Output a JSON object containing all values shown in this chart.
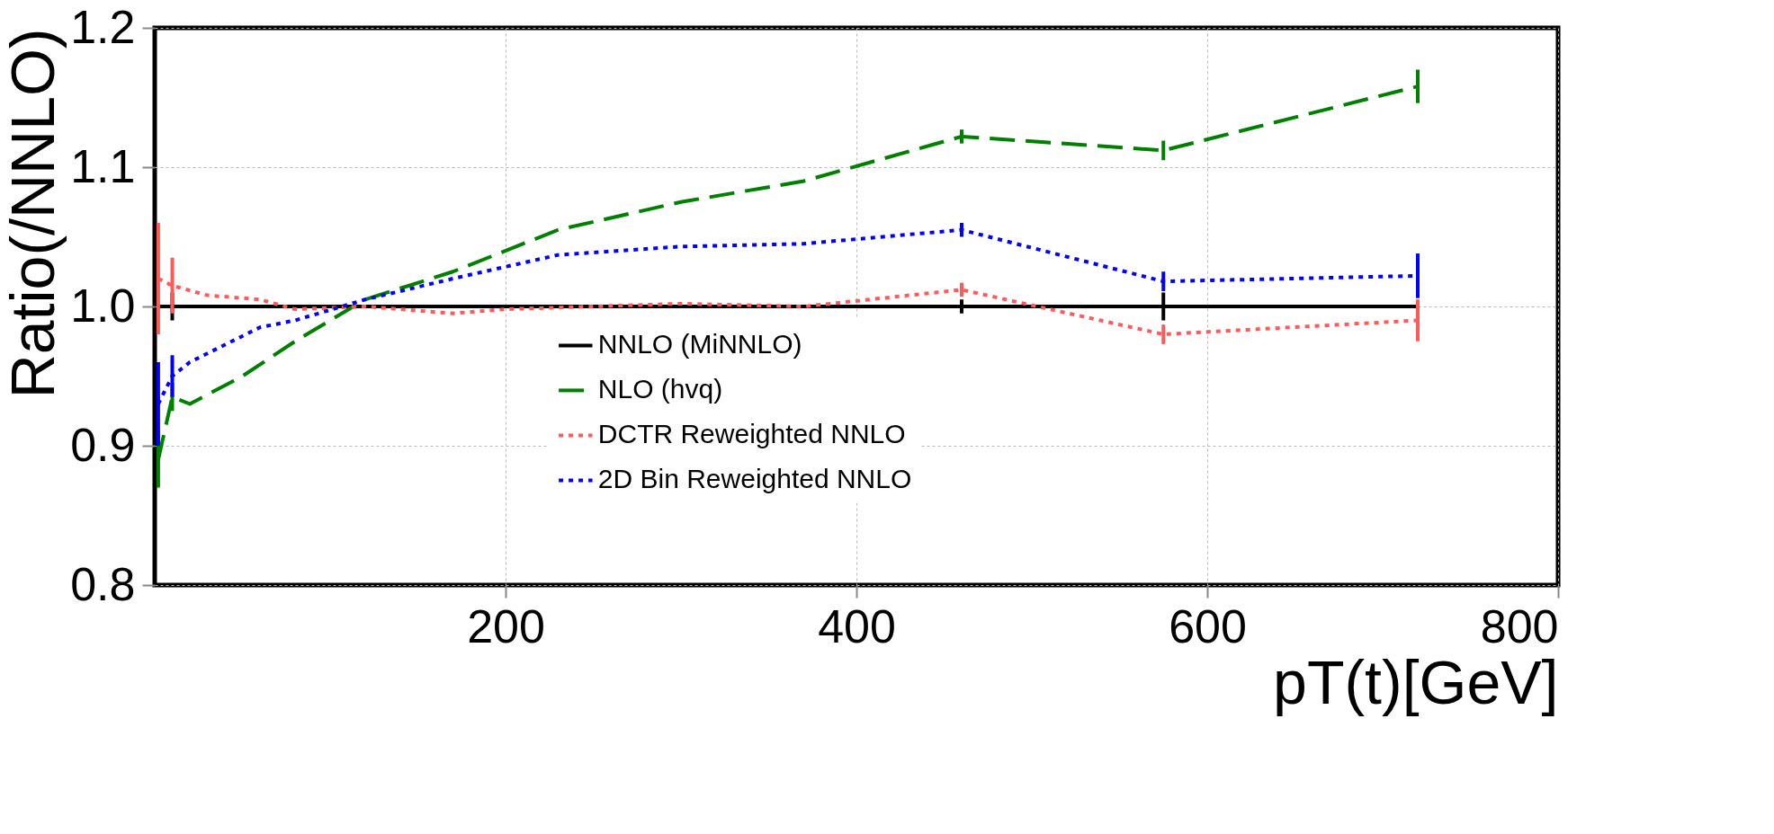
{
  "chart_data": {
    "type": "line",
    "xlabel": "pT(t)[GeV]",
    "ylabel": "Ratio(/NNLO)",
    "xlim": [
      0,
      800
    ],
    "ylim": [
      0.8,
      1.2
    ],
    "xticks": [
      200,
      400,
      600,
      800
    ],
    "yticks": [
      0.8,
      0.9,
      {
        "value": 1.0,
        "label": "1.0"
      },
      1.1,
      1.2
    ],
    "grid": true,
    "legend": "bottom",
    "series": [
      {
        "name": "NNLO (MiNNLO)",
        "color": "#000000",
        "line_style": "solid",
        "x": [
          2,
          10,
          30,
          80,
          150,
          300,
          460,
          575,
          720
        ],
        "values": [
          1.0,
          1.0,
          1.0,
          1.0,
          1.0,
          1.0,
          1.0,
          1.0,
          1.0
        ],
        "errors": [
          null,
          0.01,
          null,
          null,
          null,
          null,
          0.005,
          0.01,
          null
        ]
      },
      {
        "name": "NLO (hvq)",
        "color": "#008000",
        "line_style": "dashed",
        "x": [
          2,
          10,
          20,
          50,
          80,
          120,
          170,
          230,
          300,
          370,
          460,
          575,
          720
        ],
        "values": [
          0.89,
          0.935,
          0.93,
          0.95,
          0.975,
          1.005,
          1.025,
          1.055,
          1.075,
          1.09,
          1.122,
          1.112,
          1.158
        ],
        "errors": [
          0.02,
          0.01,
          null,
          null,
          null,
          null,
          null,
          null,
          null,
          null,
          0.005,
          0.007,
          0.012
        ]
      },
      {
        "name": "DCTR Reweighted NNLO",
        "color": "#ff5a5a",
        "line_style": "dotted",
        "x": [
          2,
          10,
          30,
          60,
          80,
          120,
          170,
          200,
          300,
          370,
          460,
          575,
          720
        ],
        "values": [
          1.02,
          1.015,
          1.008,
          1.005,
          0.998,
          1.0,
          0.995,
          0.998,
          1.002,
          1.0,
          1.012,
          0.98,
          0.99
        ],
        "errors": [
          0.04,
          0.02,
          null,
          null,
          null,
          null,
          null,
          null,
          null,
          null,
          0.005,
          0.007,
          0.015
        ]
      },
      {
        "name": "2D Bin Reweighted NNLO",
        "color": "#0000ff",
        "line_style": "dotted",
        "x": [
          2,
          10,
          20,
          60,
          80,
          120,
          170,
          230,
          300,
          370,
          460,
          575,
          720
        ],
        "values": [
          0.93,
          0.95,
          0.96,
          0.985,
          0.99,
          1.005,
          1.02,
          1.037,
          1.043,
          1.045,
          1.055,
          1.018,
          1.022
        ],
        "errors": [
          0.03,
          0.015,
          null,
          null,
          null,
          null,
          null,
          null,
          null,
          null,
          0.005,
          0.007,
          0.016
        ]
      }
    ]
  }
}
